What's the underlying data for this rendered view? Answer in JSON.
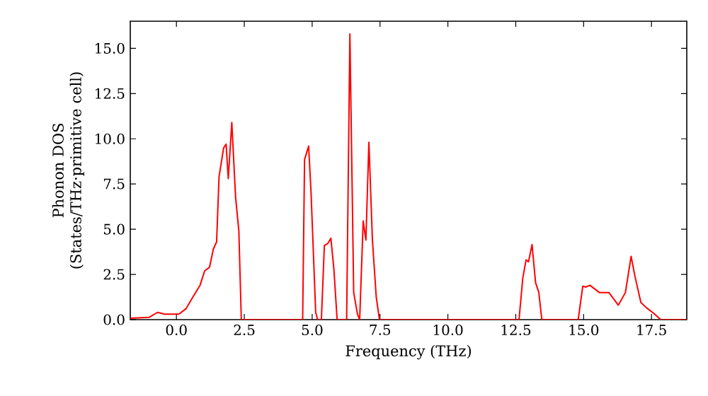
{
  "chart_data": {
    "type": "line",
    "xlabel": "Frequency (THz)",
    "ylabel": "Phonon DOS (States/THz·primitive cell)",
    "xlim": [
      -1.7,
      18.8
    ],
    "ylim": [
      0,
      16.5
    ],
    "xticks": [
      {
        "value": 0,
        "label": "0.0"
      },
      {
        "value": 2.5,
        "label": "2.5"
      },
      {
        "value": 5,
        "label": "5.0"
      },
      {
        "value": 7.5,
        "label": "7.5"
      },
      {
        "value": 10,
        "label": "10.0"
      },
      {
        "value": 12.5,
        "label": "12.5"
      },
      {
        "value": 15,
        "label": "15.0"
      },
      {
        "value": 17.5,
        "label": "17.5"
      }
    ],
    "yticks": [
      {
        "value": 0,
        "label": "0.0"
      },
      {
        "value": 2.5,
        "label": "2.5"
      },
      {
        "value": 5,
        "label": "5.0"
      },
      {
        "value": 7.5,
        "label": "7.5"
      },
      {
        "value": 10,
        "label": "10.0"
      },
      {
        "value": 12.5,
        "label": "12.5"
      },
      {
        "value": 15,
        "label": "15.0"
      }
    ],
    "grid": false,
    "marker": "none",
    "line_style": "solid",
    "series": [
      {
        "color": "#ff0000",
        "x": [
          -1.7,
          -1.0,
          -0.7,
          -0.43,
          0.09,
          0.35,
          0.61,
          0.87,
          1.04,
          1.22,
          1.36,
          1.48,
          1.57,
          1.74,
          1.83,
          1.91,
          2.04,
          2.18,
          2.3,
          2.39,
          4.65,
          4.72,
          4.87,
          4.96,
          5.13,
          5.2,
          5.34,
          5.45,
          5.57,
          5.69,
          5.8,
          5.92,
          6.27,
          6.39,
          6.53,
          6.67,
          6.75,
          6.88,
          6.98,
          7.09,
          7.22,
          7.36,
          7.48,
          12.62,
          12.76,
          12.88,
          12.97,
          13.1,
          13.23,
          13.35,
          13.46,
          14.8,
          14.97,
          15.09,
          15.23,
          15.58,
          15.93,
          16.28,
          16.54,
          16.75,
          16.89,
          17.11,
          17.32,
          17.58,
          17.84,
          18.8
        ],
        "values": [
          0.08,
          0.13,
          0.4,
          0.3,
          0.3,
          0.6,
          1.26,
          1.9,
          2.7,
          2.9,
          3.9,
          4.3,
          7.9,
          9.5,
          9.7,
          7.8,
          10.9,
          6.75,
          4.9,
          0,
          0,
          8.85,
          9.6,
          7.0,
          0.4,
          0,
          0,
          4.1,
          4.2,
          4.5,
          2.8,
          0,
          0,
          15.8,
          1.5,
          0.3,
          0,
          5.45,
          4.4,
          9.8,
          4.4,
          1.26,
          0,
          0,
          2.3,
          3.3,
          3.2,
          4.15,
          2.05,
          1.5,
          0,
          0,
          1.85,
          1.8,
          1.9,
          1.5,
          1.5,
          0.8,
          1.5,
          3.5,
          2.4,
          0.95,
          0.65,
          0.35,
          0,
          0
        ]
      }
    ]
  }
}
